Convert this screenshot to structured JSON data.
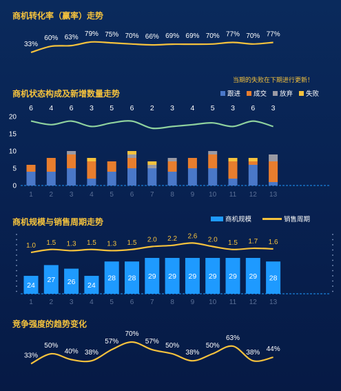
{
  "colors": {
    "title": "#f5c23d",
    "line": "#f5c23d",
    "follow": "#4a78c8",
    "deal": "#e87e2e",
    "abandon": "#9a9aa4",
    "lost": "#f5c23d",
    "new_line": "#8fd19e",
    "scale_bar": "#1e9aff"
  },
  "titles": {
    "conv": "商机转化率（赢率）走势",
    "status": "商机状态构成及新增数量走势",
    "scale": "商机规模与销售周期走势",
    "comp": "竞争强度的趋势变化"
  },
  "note": "当期的失败在下期进行更新！",
  "legend_status": [
    "跟进",
    "成交",
    "放弃",
    "失败"
  ],
  "legend_scale": [
    "商机规模",
    "销售周期"
  ],
  "chart_data": [
    {
      "type": "line",
      "title": "商机转化率（赢率）走势",
      "x": [
        1,
        2,
        3,
        4,
        5,
        6,
        7,
        8,
        9,
        10,
        11,
        12,
        13
      ],
      "values": [
        33,
        60,
        63,
        79,
        75,
        70,
        66,
        69,
        69,
        70,
        77,
        70,
        77
      ],
      "labels": [
        "33%",
        "60%",
        "63%",
        "79%",
        "75%",
        "70%",
        "66%",
        "69%",
        "69%",
        "70%",
        "77%",
        "70%",
        "77%"
      ]
    },
    {
      "type": "bar",
      "title": "商机状态构成及新增数量走势",
      "categories": [
        "1",
        "2",
        "3",
        "4",
        "5",
        "6",
        "7",
        "8",
        "9",
        "10",
        "11",
        "12",
        "13"
      ],
      "ylim": [
        0,
        20
      ],
      "yticks": [
        "0",
        "5",
        "10",
        "15",
        "20"
      ],
      "series": [
        {
          "name": "跟进",
          "values": [
            4,
            4,
            5,
            2,
            4,
            5,
            5,
            4,
            5,
            5,
            2,
            6,
            1
          ]
        },
        {
          "name": "成交",
          "values": [
            2,
            4,
            4,
            5,
            3,
            3,
            0,
            3,
            3,
            4,
            5,
            1,
            6
          ]
        },
        {
          "name": "放弃",
          "values": [
            0,
            0,
            1,
            0,
            0,
            1,
            1,
            1,
            0,
            1,
            0,
            0,
            2
          ]
        },
        {
          "name": "失败",
          "values": [
            0,
            0,
            0,
            1,
            0,
            1,
            1,
            0,
            0,
            0,
            1,
            1,
            0
          ]
        }
      ],
      "new_count": {
        "values": [
          6,
          4,
          6,
          3,
          5,
          6,
          2,
          3,
          4,
          5,
          3,
          6,
          3
        ]
      }
    },
    {
      "type": "bar",
      "title": "商机规模与销售周期走势",
      "categories": [
        "1",
        "2",
        "3",
        "4",
        "5",
        "6",
        "7",
        "8",
        "9",
        "10",
        "11",
        "12",
        "13"
      ],
      "series": [
        {
          "name": "商机规模",
          "values": [
            24,
            27,
            26,
            24,
            28,
            28,
            29,
            29,
            29,
            29,
            29,
            29,
            28
          ]
        },
        {
          "name": "销售周期",
          "values": [
            1.0,
            1.5,
            1.3,
            1.5,
            1.3,
            1.5,
            2.0,
            2.2,
            2.6,
            2.0,
            1.5,
            1.7,
            1.6
          ],
          "labels": [
            "1.0",
            "1.5",
            "1.3",
            "1.5",
            "1.3",
            "1.5",
            "2.0",
            "2.2",
            "2.6",
            "2.0",
            "1.5",
            "1.7",
            "1.6"
          ]
        }
      ]
    },
    {
      "type": "line",
      "title": "竞争强度的趋势变化",
      "x": [
        1,
        2,
        3,
        4,
        5,
        6,
        7,
        8,
        9,
        10,
        11,
        12,
        13
      ],
      "values": [
        33,
        50,
        40,
        38,
        57,
        70,
        57,
        50,
        38,
        50,
        63,
        38,
        44
      ],
      "labels": [
        "33%",
        "50%",
        "40%",
        "38%",
        "57%",
        "70%",
        "57%",
        "50%",
        "38%",
        "50%",
        "63%",
        "38%",
        "44%"
      ]
    }
  ]
}
